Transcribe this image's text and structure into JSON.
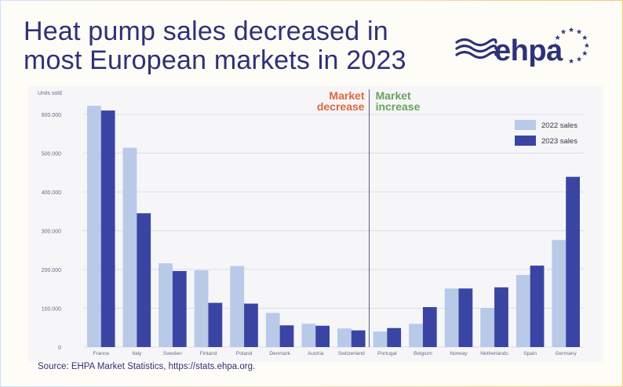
{
  "header": {
    "title": "Heat pump sales decreased in most European markets in 2023",
    "logo_text": "ehpa"
  },
  "colors": {
    "title": "#2f3178",
    "series_2022": "#b9c9e8",
    "series_2023": "#3a45a3",
    "decrease_label": "#e0663a",
    "increase_label": "#6aa15a",
    "grid": "#dcdce6",
    "tick_text": "#6b6b80"
  },
  "chart_data": {
    "type": "bar",
    "title": "Heat pump sales decreased in most European markets in 2023",
    "ylabel": "Units sold",
    "xlabel": "",
    "ylim": [
      0,
      600000
    ],
    "yticks": [
      0,
      100000,
      200000,
      300000,
      400000,
      500000,
      600000
    ],
    "ytick_labels": [
      "0",
      "100.000",
      "200.000",
      "300.000",
      "400.000",
      "500.000",
      "600.000"
    ],
    "categories": [
      "France",
      "Italy",
      "Sweden",
      "Finland",
      "Poland",
      "Denmark",
      "Austria",
      "Switzerland",
      "Portugal",
      "Belgium",
      "Norway",
      "Netherlands",
      "Spain",
      "Germany"
    ],
    "series": [
      {
        "name": "2022 sales",
        "values": [
          622000,
          514000,
          216000,
          198000,
          209000,
          88000,
          60000,
          48000,
          40000,
          60000,
          151000,
          101000,
          186000,
          276000
        ]
      },
      {
        "name": "2023 sales",
        "values": [
          610000,
          345000,
          196000,
          114000,
          112000,
          56000,
          55000,
          43000,
          49000,
          103000,
          151000,
          154000,
          210000,
          439000
        ]
      }
    ],
    "annotations": {
      "decrease": {
        "line1": "Market",
        "line2": "decrease"
      },
      "increase": {
        "line1": "Market",
        "line2": "increase"
      }
    },
    "divider_after_index": 7,
    "legend_position": "top-right"
  },
  "footer": {
    "source": "Source: EHPA Market Statistics, https://stats.ehpa.org."
  }
}
